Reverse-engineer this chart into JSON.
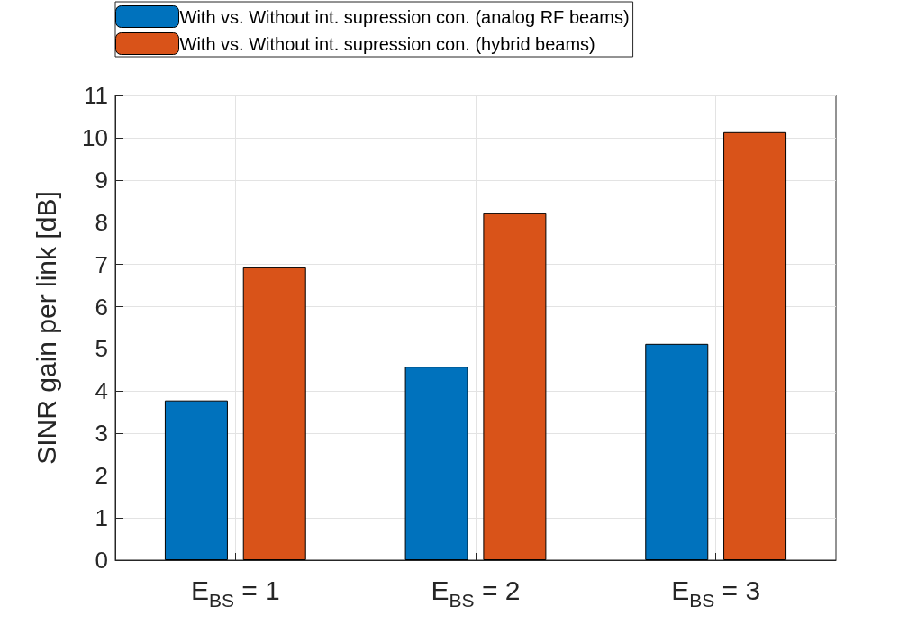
{
  "chart_data": {
    "type": "bar",
    "ylabel": "SINR gain per link [dB]",
    "categories": [
      "E$_{BS}$ = 1",
      "E$_{BS}$ = 2",
      "E$_{BS}$ = 3"
    ],
    "series": [
      {
        "name": "With vs. Without int. supression con. (analog RF beams)",
        "color": "#0072bd",
        "values": [
          3.78,
          4.58,
          5.12
        ]
      },
      {
        "name": "With vs. Without int. supression con. (hybrid beams)",
        "color": "#d95319",
        "values": [
          6.93,
          8.21,
          10.13
        ]
      }
    ],
    "ylim": [
      0,
      11
    ],
    "yticks": [
      0,
      1,
      2,
      3,
      4,
      5,
      6,
      7,
      8,
      9,
      10,
      11
    ],
    "grid": true,
    "legend": "top"
  }
}
